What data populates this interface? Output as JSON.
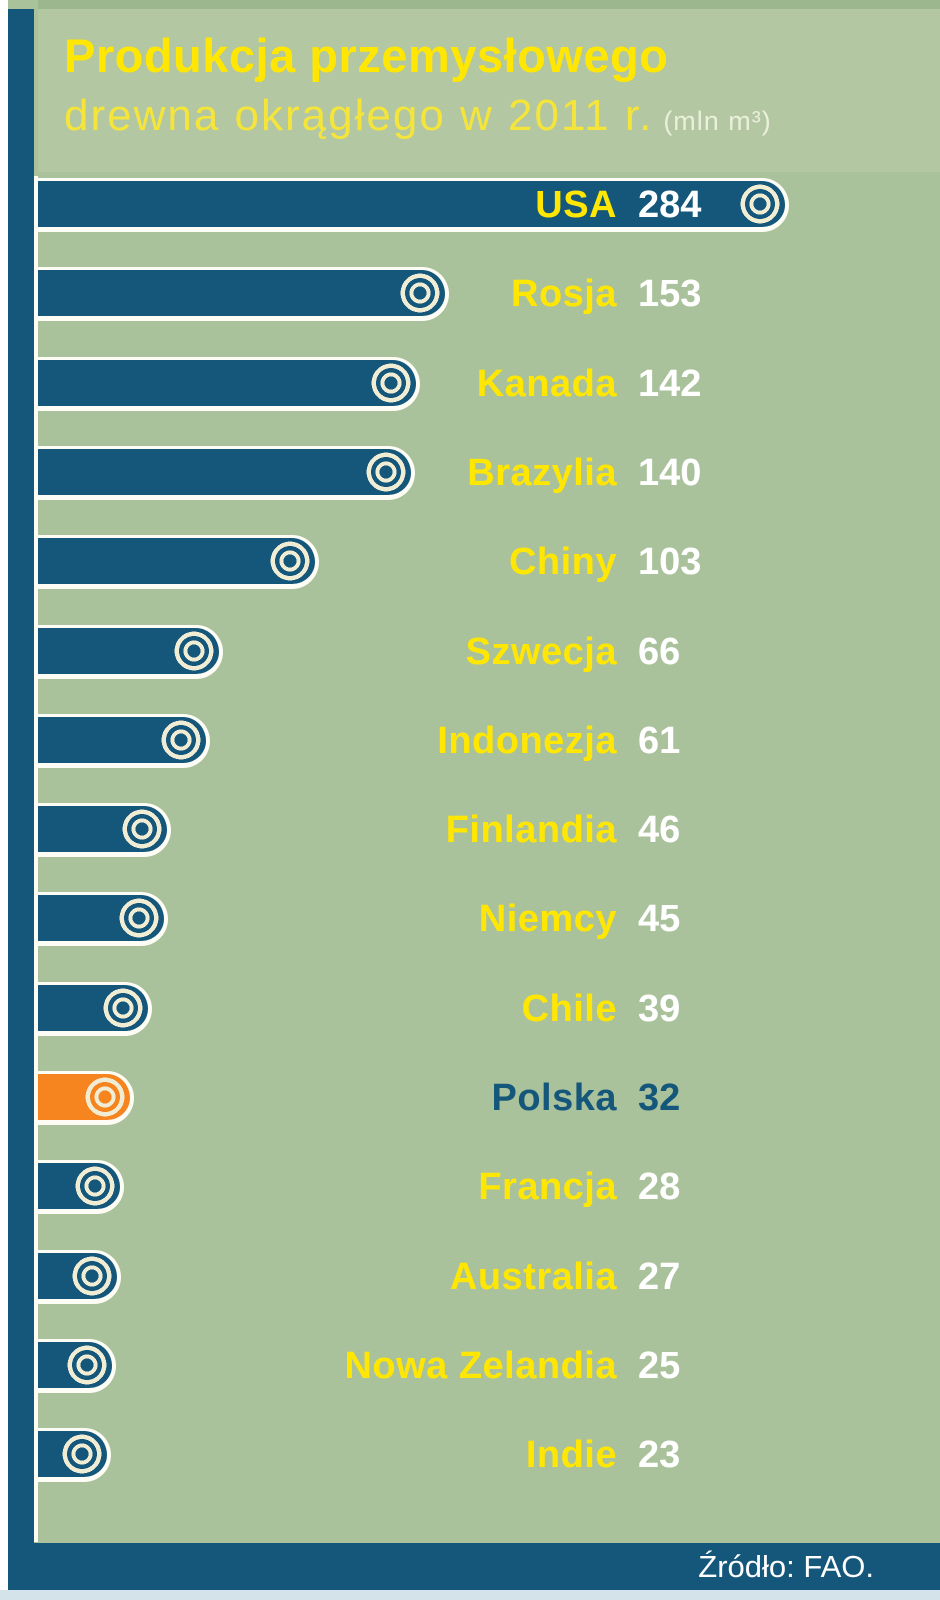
{
  "title": {
    "line1": "Produkcja przemysłowego",
    "line2": "drewna okrągłego w 2011 r.",
    "unit": "(mln m³)"
  },
  "footer": {
    "source": "Źródło: FAO."
  },
  "colors": {
    "bar_teal": "#14577b",
    "highlight_orange": "#f6851f",
    "background_green": "#aac29b",
    "label_yellow": "#ffe603",
    "value_white": "#ffffff",
    "ring_cream": "#f1ecd4",
    "footer_teal": "#14577b"
  },
  "icons": {
    "bar_tip": "log-end-rings-icon"
  },
  "chart_data": {
    "type": "bar",
    "orientation": "horizontal",
    "title": "Produkcja przemysłowego drewna okrągłego w 2011 r.",
    "unit": "mln m³",
    "categories": [
      "USA",
      "Rosja",
      "Kanada",
      "Brazylia",
      "Chiny",
      "Szwecja",
      "Indonezja",
      "Finlandia",
      "Niemcy",
      "Chile",
      "Polska",
      "Francja",
      "Australia",
      "Nowa Zelandia",
      "Indie"
    ],
    "values": [
      284,
      153,
      142,
      140,
      103,
      66,
      61,
      46,
      45,
      39,
      32,
      28,
      27,
      25,
      23
    ],
    "highlight_category": "Polska",
    "value_range": [
      0,
      284
    ],
    "grid": false,
    "legend": false,
    "source": "Źródło: FAO."
  }
}
